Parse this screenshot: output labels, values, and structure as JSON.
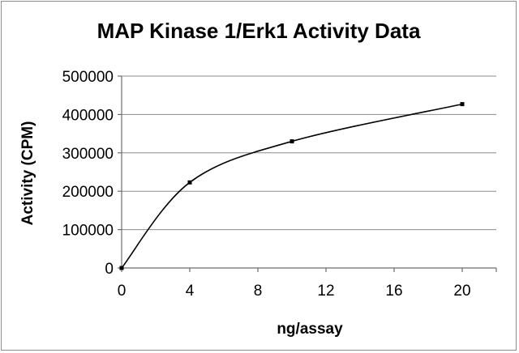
{
  "chart_data": {
    "type": "scatter",
    "title": "MAP Kinase 1/Erk1 Activity Data",
    "xlabel": "ng/assay",
    "ylabel": "Activity (CPM)",
    "xlim": [
      0,
      22
    ],
    "ylim": [
      0,
      500000
    ],
    "xticks": [
      0,
      4,
      8,
      12,
      16,
      20
    ],
    "yticks": [
      0,
      100000,
      200000,
      300000,
      400000,
      500000
    ],
    "grid": "horizontal",
    "smoothed_line": true,
    "series": [
      {
        "x": [
          0,
          4,
          10,
          20
        ],
        "y": [
          0,
          223000,
          330000,
          427000
        ]
      }
    ]
  }
}
